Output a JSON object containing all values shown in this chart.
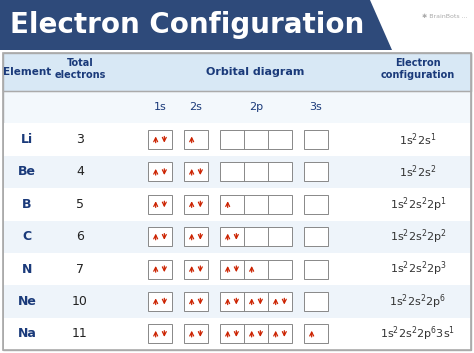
{
  "title": "Electron Configuration",
  "title_bg": "#2e4a7a",
  "title_text_color": "#ffffff",
  "header_bg": "#d8e8f5",
  "table_bg": "#f5f9fd",
  "border_color": "#999999",
  "element_col_color": "#1a3a7a",
  "config_color": "#333333",
  "arrow_color": "#cc2200",
  "box_border_color": "#888888",
  "elements": [
    "Li",
    "Be",
    "B",
    "C",
    "N",
    "Ne",
    "Na"
  ],
  "electrons": [
    3,
    4,
    5,
    6,
    7,
    10,
    11
  ],
  "configs": [
    [
      "1s",
      "2",
      "2s",
      "1"
    ],
    [
      "1s",
      "2",
      "2s",
      "2"
    ],
    [
      "1s",
      "2",
      "2s",
      "2",
      "2p",
      "1"
    ],
    [
      "1s",
      "2",
      "2s",
      "2",
      "2p",
      "2"
    ],
    [
      "1s",
      "2",
      "2s",
      "2",
      "2p",
      "3"
    ],
    [
      "1s",
      "2",
      "2s",
      "2",
      "2p",
      "6"
    ],
    [
      "1s",
      "2",
      "2s",
      "2",
      "2p",
      "6",
      "3s",
      "1"
    ]
  ],
  "orbital_fill": [
    {
      "1s": 2,
      "2s": 1,
      "2p": 0,
      "3s": 0
    },
    {
      "1s": 2,
      "2s": 2,
      "2p": 0,
      "3s": 0
    },
    {
      "1s": 2,
      "2s": 2,
      "2p": 1,
      "3s": 0
    },
    {
      "1s": 2,
      "2s": 2,
      "2p": 2,
      "3s": 0
    },
    {
      "1s": 2,
      "2s": 2,
      "2p": 3,
      "3s": 0
    },
    {
      "1s": 2,
      "2s": 2,
      "2p": 6,
      "3s": 0
    },
    {
      "1s": 2,
      "2s": 2,
      "2p": 6,
      "3s": 1
    }
  ],
  "subshells": [
    "1s",
    "2s",
    "2p",
    "3s"
  ],
  "subshell_n_boxes": {
    "1s": 1,
    "2s": 1,
    "2p": 3,
    "3s": 1
  },
  "figw": 4.74,
  "figh": 3.53,
  "dpi": 100
}
